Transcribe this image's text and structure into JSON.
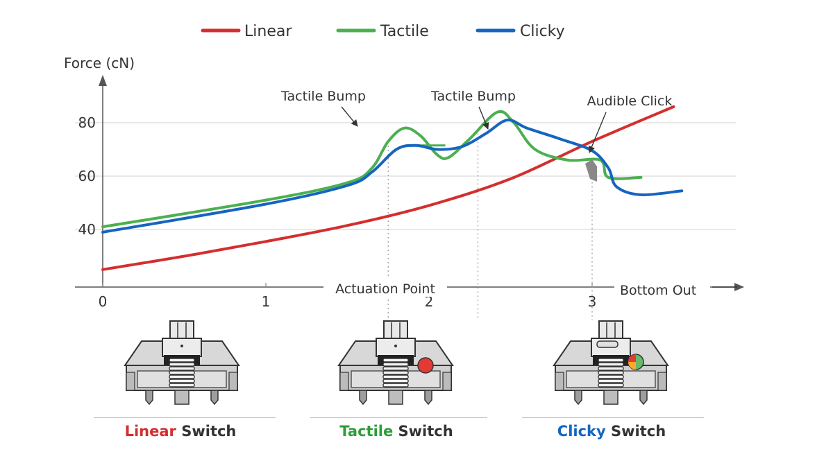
{
  "chart_data": {
    "type": "line",
    "title": "",
    "xlabel": "",
    "ylabel": "Force (cN)",
    "xlim": [
      0,
      3.5
    ],
    "ylim": [
      15,
      95
    ],
    "grid": true,
    "legend_position": "top-center",
    "x_ticks": [
      0,
      1,
      2,
      3
    ],
    "y_ticks": [
      40,
      60,
      80
    ],
    "series": [
      {
        "name": "Linear",
        "color": "#d32f2f",
        "points": [
          [
            0,
            25
          ],
          [
            0.5,
            30
          ],
          [
            1,
            35.5
          ],
          [
            1.5,
            41.5
          ],
          [
            2,
            49
          ],
          [
            2.5,
            59
          ],
          [
            3,
            73
          ],
          [
            3.5,
            86
          ]
        ]
      },
      {
        "name": "Tactile",
        "color": "#4caf50",
        "points": [
          [
            0,
            41
          ],
          [
            1,
            51
          ],
          [
            1.5,
            57.5
          ],
          [
            1.65,
            63
          ],
          [
            1.75,
            73
          ],
          [
            1.85,
            78
          ],
          [
            1.95,
            75
          ],
          [
            2.05,
            68
          ],
          [
            2.12,
            67
          ],
          [
            2.25,
            74
          ],
          [
            2.42,
            84
          ],
          [
            2.52,
            80
          ],
          [
            2.65,
            70
          ],
          [
            2.85,
            66
          ],
          [
            3.05,
            66
          ],
          [
            3.1,
            59.5
          ],
          [
            3.3,
            59.5
          ]
        ],
        "markers": [
          {
            "x": 1.86,
            "y": 71.5,
            "x2": 2.1,
            "note": "flat step"
          }
        ]
      },
      {
        "name": "Clicky",
        "color": "#1565c0",
        "points": [
          [
            0,
            39
          ],
          [
            1,
            49.5
          ],
          [
            1.5,
            56.5
          ],
          [
            1.65,
            61.5
          ],
          [
            1.8,
            70
          ],
          [
            1.92,
            71.5
          ],
          [
            2.05,
            70
          ],
          [
            2.2,
            71
          ],
          [
            2.35,
            76
          ],
          [
            2.48,
            81
          ],
          [
            2.6,
            78
          ],
          [
            2.8,
            74
          ],
          [
            3.0,
            69.5
          ],
          [
            3.1,
            63
          ],
          [
            3.15,
            56
          ],
          [
            3.3,
            53
          ],
          [
            3.55,
            54.5
          ]
        ]
      }
    ],
    "annotations": [
      {
        "text": "Tactile Bump",
        "x": 1.88,
        "y": 78
      },
      {
        "text": "Tactile Bump",
        "x": 2.52,
        "y": 81
      },
      {
        "text": "Audible Click",
        "x": 3.09,
        "y": 69
      }
    ],
    "x_annotations": [
      {
        "text": "Actuation Point",
        "x": 1.93
      },
      {
        "text": "Bottom Out",
        "x": 3.0
      }
    ]
  },
  "legend": {
    "items": [
      {
        "label": "Linear",
        "color": "#d32f2f"
      },
      {
        "label": "Tactile",
        "color": "#4caf50"
      },
      {
        "label": "Clicky",
        "color": "#1565c0"
      }
    ]
  },
  "captions": [
    {
      "colored": "Linear",
      "rest": " Switch",
      "color": "#d32f2f"
    },
    {
      "colored": "Tactile",
      "rest": " Switch",
      "color": "#2e9d3a"
    },
    {
      "colored": "Clicky",
      "rest": " Switch",
      "color": "#1565c0"
    }
  ],
  "icons": [
    "linear-switch-icon",
    "tactile-switch-icon",
    "clicky-switch-icon"
  ]
}
